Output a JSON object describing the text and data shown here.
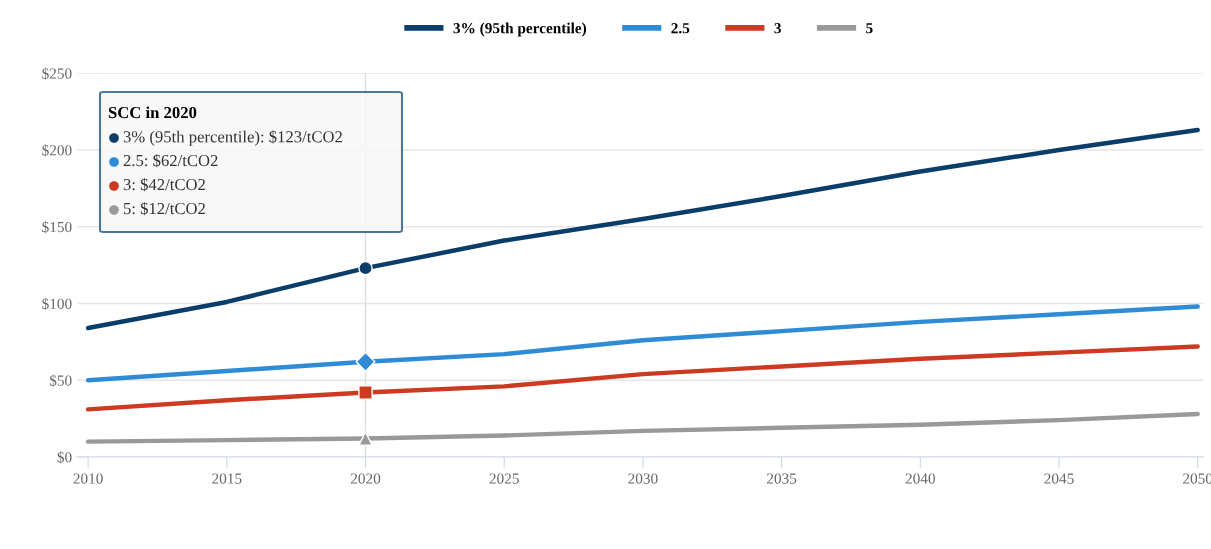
{
  "chart_data": {
    "type": "line",
    "x": [
      2010,
      2015,
      2020,
      2025,
      2030,
      2035,
      2040,
      2045,
      2050
    ],
    "series": [
      {
        "name": "3% (95th percentile)",
        "color": "#0b3d6b",
        "values": [
          84,
          101,
          123,
          141,
          155,
          170,
          186,
          200,
          213
        ]
      },
      {
        "name": "2.5",
        "color": "#2e8bd6",
        "values": [
          50,
          56,
          62,
          67,
          76,
          82,
          88,
          93,
          98
        ]
      },
      {
        "name": "3",
        "color": "#cc3a22",
        "values": [
          31,
          37,
          42,
          46,
          54,
          59,
          64,
          68,
          72
        ]
      },
      {
        "name": "5",
        "color": "#999999",
        "values": [
          10,
          11,
          12,
          14,
          17,
          19,
          21,
          24,
          28
        ]
      },
      {
        "type": "scatter",
        "color": "#0b3d6b",
        "marker": "circle",
        "values": [
          null,
          null,
          123,
          null,
          null,
          null,
          null,
          null,
          null
        ]
      },
      {
        "type": "scatter",
        "color": "#2e8bd6",
        "marker": "diamond",
        "values": [
          null,
          null,
          62,
          null,
          null,
          null,
          null,
          null,
          null
        ]
      },
      {
        "type": "scatter",
        "color": "#cc3a22",
        "marker": "square",
        "values": [
          null,
          null,
          42,
          null,
          null,
          null,
          null,
          null,
          null
        ]
      },
      {
        "type": "scatter",
        "color": "#999999",
        "marker": "triangle",
        "values": [
          null,
          null,
          12,
          null,
          null,
          null,
          null,
          null,
          null
        ]
      }
    ],
    "xlim": [
      2009.6,
      2050.2
    ],
    "xticks": [
      2010,
      2015,
      2020,
      2025,
      2030,
      2035,
      2040,
      2045,
      2050
    ],
    "ylim": [
      0,
      250
    ],
    "yticks": [
      {
        "value": 0,
        "label": "$0"
      },
      {
        "value": 50,
        "label": "$50"
      },
      {
        "value": 100,
        "label": "$100"
      },
      {
        "value": 150,
        "label": "$150"
      },
      {
        "value": 200,
        "label": "$200"
      },
      {
        "value": 250,
        "label": "$250"
      }
    ],
    "grid": "y",
    "legend": "top",
    "marker": "none",
    "line_style": "solid",
    "ref_lines": [
      {
        "axis": "x",
        "value": 2020,
        "color": "#dddddd"
      }
    ],
    "annotations": [
      "SCC in 2020",
      "3% (95th percentile): $123/tCO2",
      "2.5: $62/tCO2",
      "3: $42/tCO2",
      "5: $12/tCO2"
    ]
  }
}
